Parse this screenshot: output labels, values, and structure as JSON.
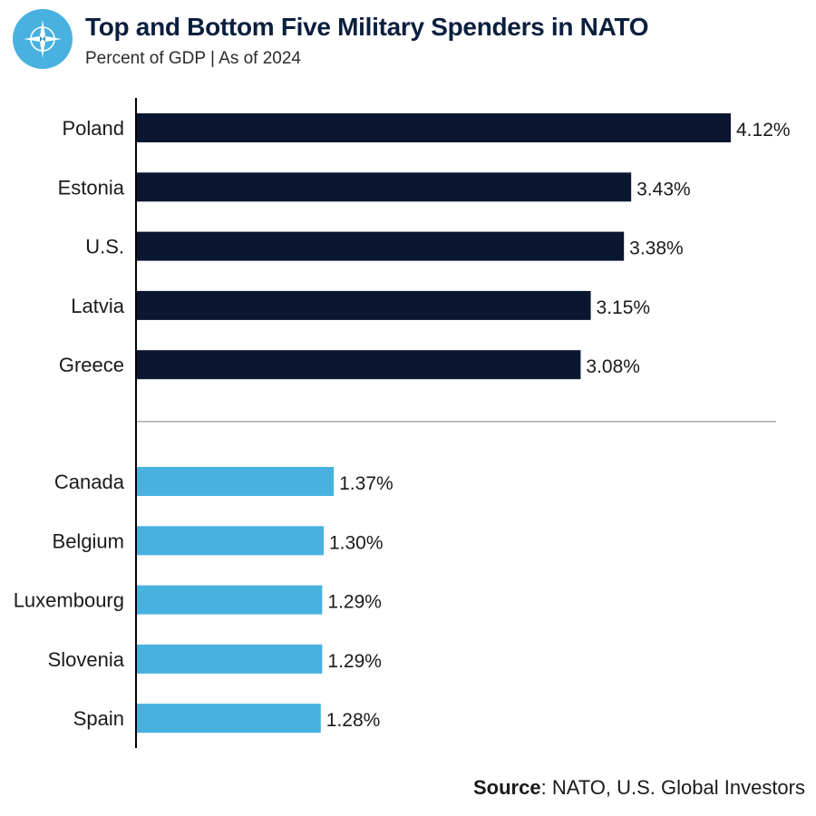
{
  "header": {
    "title": "Top and Bottom Five Military Spenders in NATO",
    "subtitle": "Percent of GDP | As of 2024"
  },
  "source": {
    "label": "Source",
    "text": ": NATO, U.S. Global Investors"
  },
  "colors": {
    "top": "#0b1631",
    "bottom": "#48b1e0",
    "divider": "#bdbdbd",
    "axis": "#000000"
  },
  "chart_data": {
    "type": "bar",
    "orientation": "horizontal",
    "title": "Top and Bottom Five Military Spenders in NATO",
    "subtitle": "Percent of GDP | As of 2024",
    "xlabel": "",
    "ylabel": "",
    "xlim": [
      0,
      4.12
    ],
    "grid": false,
    "groups": [
      {
        "name": "Top five",
        "color": "#0b1631",
        "categories": [
          "Poland",
          "Estonia",
          "U.S.",
          "Latvia",
          "Greece"
        ],
        "values": [
          4.12,
          3.43,
          3.38,
          3.15,
          3.08
        ],
        "labels": [
          "4.12%",
          "3.43%",
          "3.38%",
          "3.15%",
          "3.08%"
        ]
      },
      {
        "name": "Bottom five",
        "color": "#48b1e0",
        "categories": [
          "Canada",
          "Belgium",
          "Luxembourg",
          "Slovenia",
          "Spain"
        ],
        "values": [
          1.37,
          1.3,
          1.29,
          1.29,
          1.28
        ],
        "labels": [
          "1.37%",
          "1.30%",
          "1.29%",
          "1.29%",
          "1.28%"
        ]
      }
    ]
  }
}
